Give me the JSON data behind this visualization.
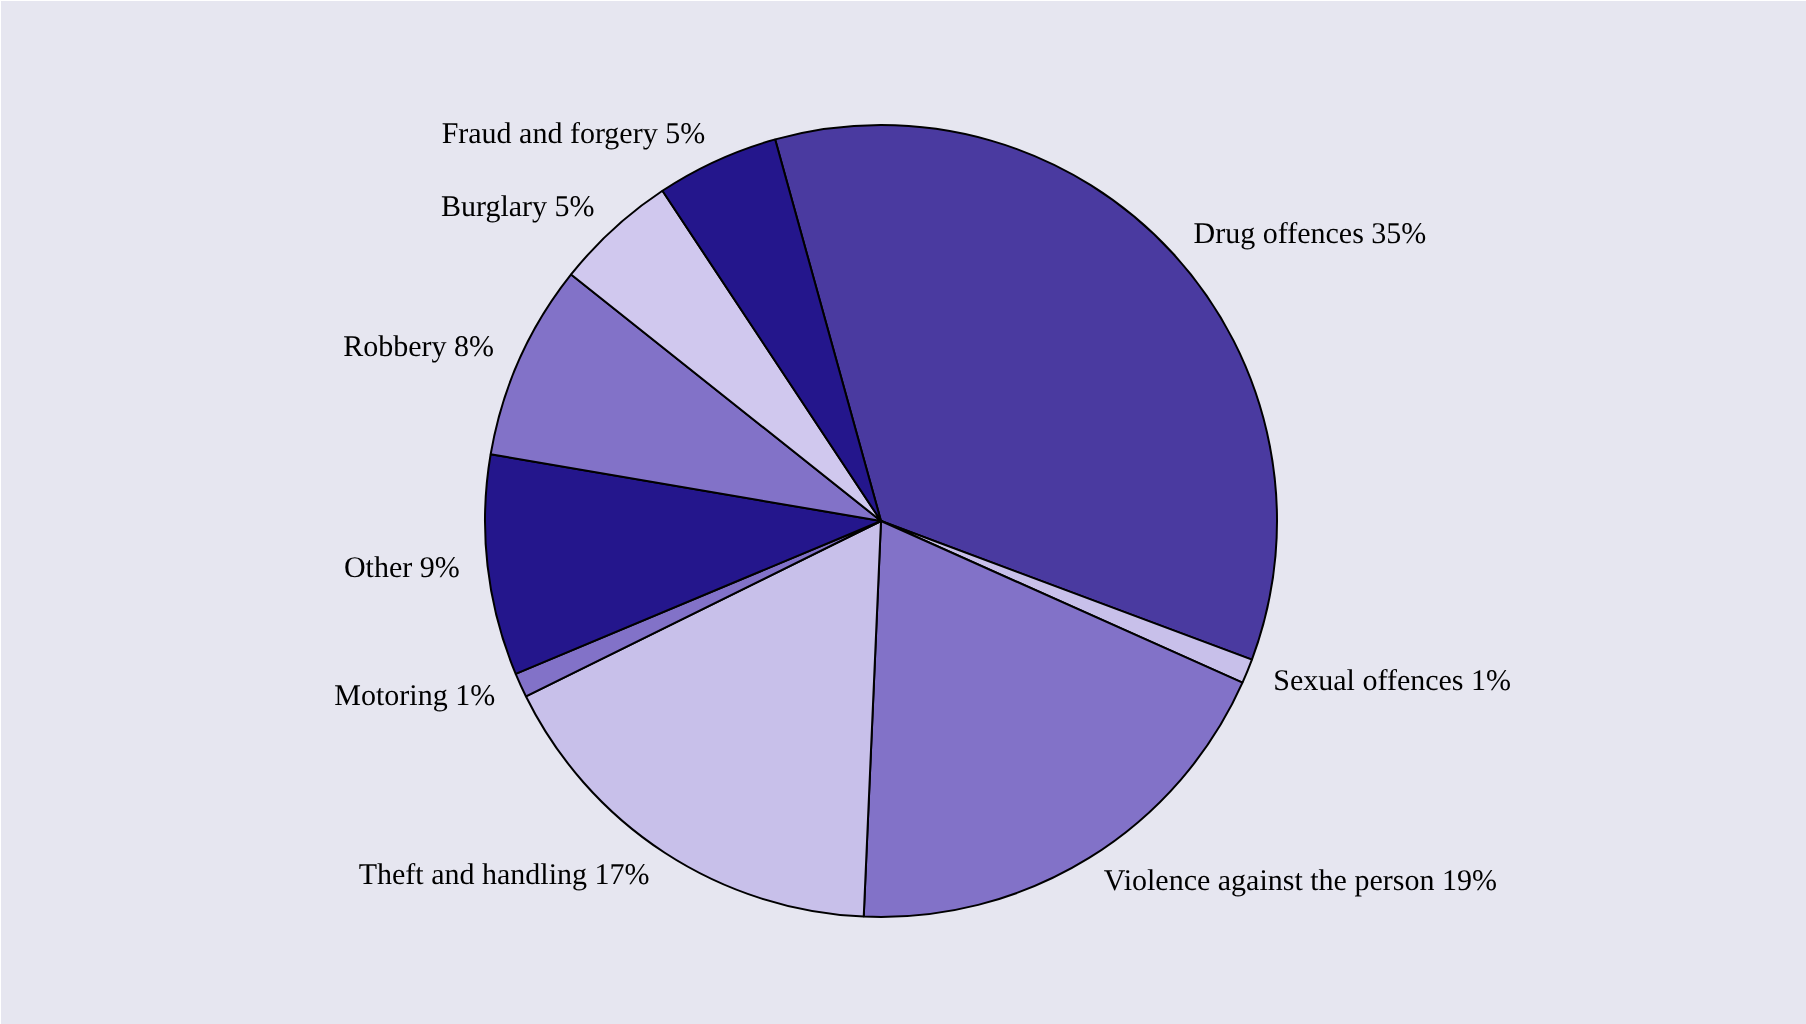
{
  "chart_data": {
    "type": "pie",
    "categories": [
      "Drug offences",
      "Sexual offences",
      "Violence against the person",
      "Theft and handling",
      "Motoring",
      "Other",
      "Robbery",
      "Burglary",
      "Fraud and forgery"
    ],
    "values": [
      35,
      1,
      19,
      17,
      1,
      9,
      8,
      5,
      5
    ],
    "value_labels": [
      "35%",
      "1%",
      "19%",
      "17%",
      "1%",
      "9%",
      "8%",
      "5%",
      "5%"
    ],
    "colors": [
      "#4a3aa0",
      "#c8c0ea",
      "#8272c8",
      "#c8c0ea",
      "#8272c8",
      "#24168c",
      "#8272c8",
      "#d0c8ee",
      "#24168c"
    ]
  }
}
